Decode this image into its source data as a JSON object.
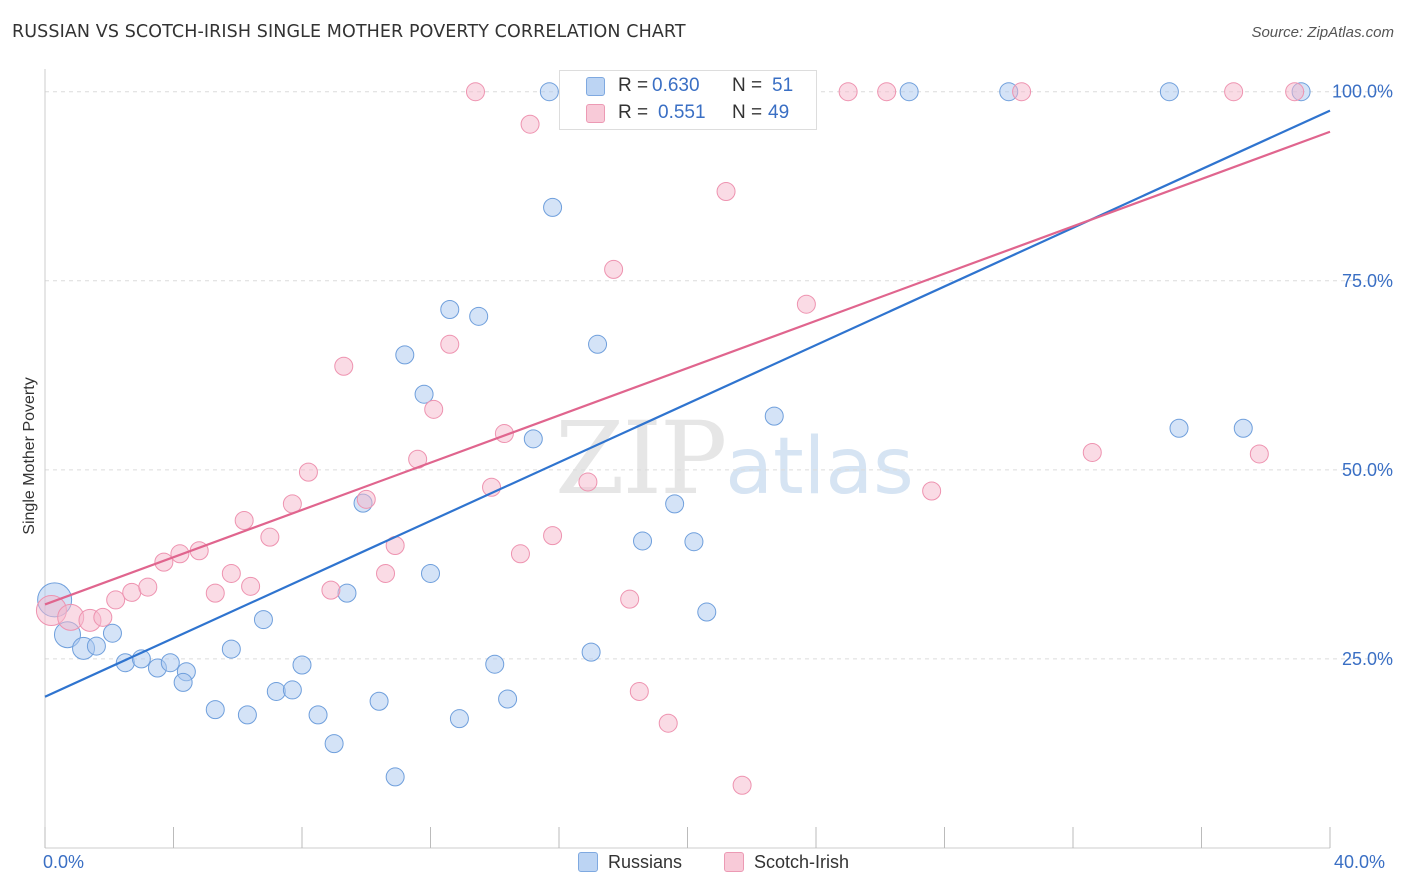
{
  "header": {
    "title": "RUSSIAN VS SCOTCH-IRISH SINGLE MOTHER POVERTY CORRELATION CHART",
    "source": "Source: ZipAtlas.com"
  },
  "watermark": {
    "zip": "ZIP",
    "atlas": "atlas"
  },
  "legend": {
    "rows": [
      {
        "r_label": "R =",
        "r_value": "0.630",
        "n_label": "N =",
        "n_value": "51",
        "color": "#a9c8f0"
      },
      {
        "r_label": "R =",
        "r_value": "0.551",
        "n_label": "N =",
        "n_value": "49",
        "color": "#f5b8cb"
      }
    ]
  },
  "bottom_legend": [
    {
      "label": "Russians",
      "color": "#a9c8f0"
    },
    {
      "label": "Scotch-Irish",
      "color": "#f5b8cb"
    }
  ],
  "chart_data": {
    "type": "scatter",
    "title": "RUSSIAN VS SCOTCH-IRISH SINGLE MOTHER POVERTY CORRELATION CHART",
    "xlabel": "",
    "ylabel": "Single Mother Poverty",
    "xlim": [
      0,
      40
    ],
    "ylim": [
      0,
      103
    ],
    "x_tick_labels": [
      "0.0%",
      "40.0%"
    ],
    "y_ticks": [
      25,
      50,
      75,
      100
    ],
    "y_tick_labels": [
      "25.0%",
      "50.0%",
      "75.0%",
      "100.0%"
    ],
    "grid": true,
    "legend_placement": "top-center",
    "series": [
      {
        "name": "Russians",
        "color": "#6f9fdc",
        "fill": "#a9c8f0",
        "line_color": "#2f74cf",
        "trend": {
          "x": [
            0,
            40
          ],
          "y": [
            20,
            97.5
          ]
        },
        "points": [
          [
            0.3,
            32.8
          ],
          [
            0.7,
            28.2
          ],
          [
            1.2,
            26.4
          ],
          [
            1.6,
            26.7
          ],
          [
            2.1,
            28.4
          ],
          [
            2.5,
            24.5
          ],
          [
            3.0,
            25.0
          ],
          [
            3.5,
            23.8
          ],
          [
            3.9,
            24.5
          ],
          [
            4.4,
            23.3
          ],
          [
            4.3,
            21.9
          ],
          [
            5.3,
            18.3
          ],
          [
            5.8,
            26.3
          ],
          [
            6.3,
            17.6
          ],
          [
            6.8,
            30.2
          ],
          [
            7.2,
            20.7
          ],
          [
            7.7,
            20.9
          ],
          [
            8.0,
            24.2
          ],
          [
            8.5,
            17.6
          ],
          [
            9.0,
            13.8
          ],
          [
            9.4,
            33.7
          ],
          [
            9.9,
            45.6
          ],
          [
            10.4,
            19.4
          ],
          [
            10.9,
            9.4
          ],
          [
            11.2,
            65.2
          ],
          [
            11.8,
            60.0
          ],
          [
            12.0,
            36.3
          ],
          [
            12.6,
            71.2
          ],
          [
            12.9,
            17.1
          ],
          [
            13.5,
            70.3
          ],
          [
            14.0,
            24.3
          ],
          [
            14.4,
            19.7
          ],
          [
            15.2,
            54.1
          ],
          [
            15.7,
            100.0
          ],
          [
            15.8,
            84.7
          ],
          [
            16.3,
            100.0
          ],
          [
            17.0,
            25.9
          ],
          [
            17.2,
            66.6
          ],
          [
            17.8,
            100.0
          ],
          [
            18.6,
            40.6
          ],
          [
            19.6,
            45.5
          ],
          [
            20.2,
            40.5
          ],
          [
            20.6,
            31.2
          ],
          [
            22.5,
            100.0
          ],
          [
            22.7,
            57.1
          ],
          [
            26.9,
            100.0
          ],
          [
            35.3,
            55.5
          ],
          [
            35.0,
            100.0
          ],
          [
            37.3,
            55.5
          ],
          [
            39.1,
            100.0
          ],
          [
            30.0,
            100.0
          ]
        ]
      },
      {
        "name": "Scotch-Irish",
        "color": "#ee93b0",
        "fill": "#f5b8cb",
        "line_color": "#e0658e",
        "trend": {
          "x": [
            0,
            40
          ],
          "y": [
            32.2,
            94.7
          ]
        },
        "points": [
          [
            0.2,
            31.4
          ],
          [
            0.8,
            30.5
          ],
          [
            1.4,
            30.1
          ],
          [
            1.8,
            30.5
          ],
          [
            2.2,
            32.8
          ],
          [
            2.7,
            33.8
          ],
          [
            3.2,
            34.5
          ],
          [
            3.7,
            37.8
          ],
          [
            4.2,
            38.9
          ],
          [
            4.8,
            39.3
          ],
          [
            5.3,
            33.7
          ],
          [
            5.8,
            36.3
          ],
          [
            6.2,
            43.3
          ],
          [
            6.4,
            34.6
          ],
          [
            7.0,
            41.1
          ],
          [
            7.7,
            45.5
          ],
          [
            8.2,
            49.7
          ],
          [
            8.9,
            34.1
          ],
          [
            9.3,
            63.7
          ],
          [
            10.0,
            46.1
          ],
          [
            10.6,
            36.3
          ],
          [
            10.9,
            40.0
          ],
          [
            11.6,
            51.4
          ],
          [
            12.1,
            58.0
          ],
          [
            12.6,
            66.6
          ],
          [
            13.4,
            100.0
          ],
          [
            13.9,
            47.7
          ],
          [
            14.3,
            54.8
          ],
          [
            14.8,
            38.9
          ],
          [
            15.1,
            95.7
          ],
          [
            15.8,
            41.3
          ],
          [
            16.9,
            48.4
          ],
          [
            17.7,
            76.5
          ],
          [
            18.2,
            32.9
          ],
          [
            18.5,
            20.7
          ],
          [
            19.4,
            16.5
          ],
          [
            20.0,
            100.0
          ],
          [
            21.2,
            86.8
          ],
          [
            21.7,
            8.3
          ],
          [
            23.2,
            100.0
          ],
          [
            23.7,
            71.9
          ],
          [
            25.0,
            100.0
          ],
          [
            27.6,
            47.2
          ],
          [
            30.4,
            100.0
          ],
          [
            32.6,
            52.3
          ],
          [
            37.0,
            100.0
          ],
          [
            37.8,
            52.1
          ],
          [
            38.9,
            100.0
          ],
          [
            26.2,
            100.0
          ]
        ]
      }
    ]
  }
}
